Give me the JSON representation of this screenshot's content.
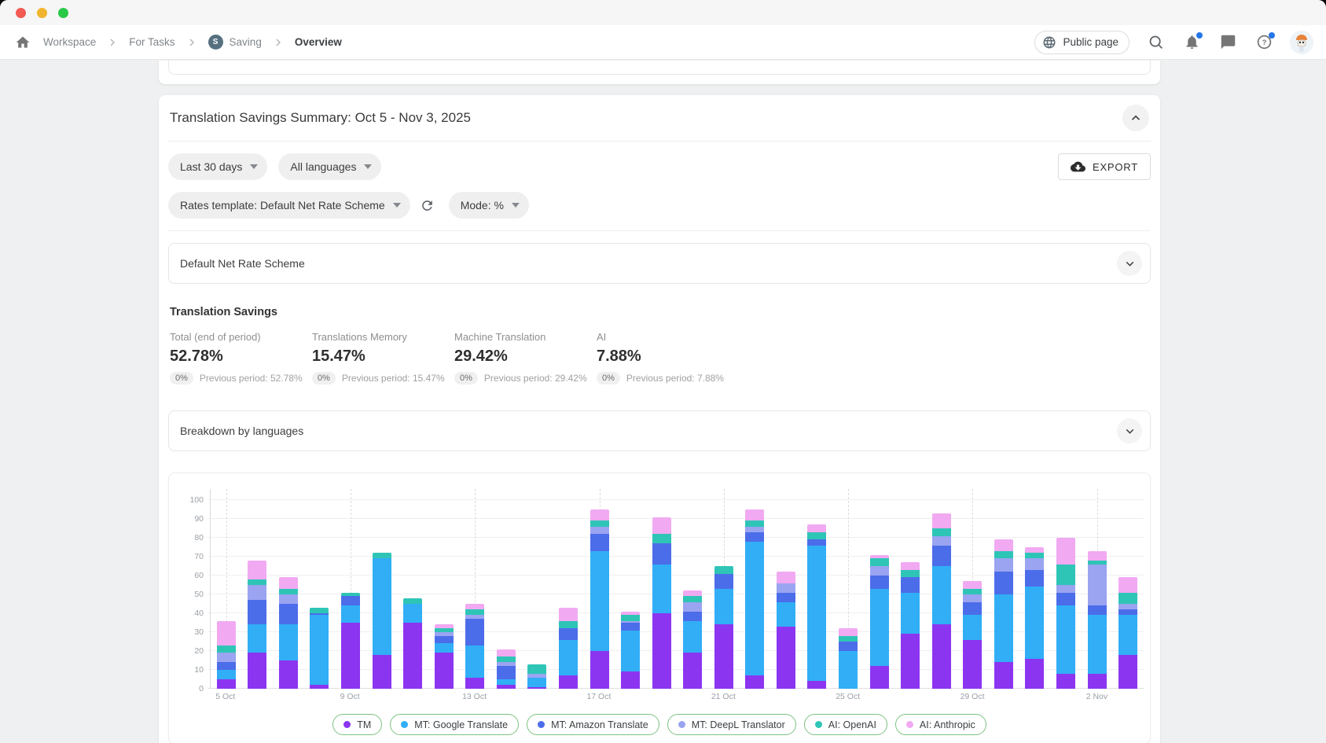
{
  "nav": {
    "breadcrumb": [
      {
        "label": "Workspace"
      },
      {
        "label": "For Tasks"
      },
      {
        "label": "Saving",
        "avatar": "S"
      },
      {
        "label": "Overview"
      }
    ],
    "public_page_label": "Public page"
  },
  "summary": {
    "title": "Translation Savings Summary: Oct 5 - Nov 3, 2025",
    "filters": {
      "date_range": "Last 30 days",
      "languages": "All languages",
      "rates_template": "Rates template: Default Net Rate Scheme",
      "mode": "Mode: %"
    },
    "export_label": "EXPORT",
    "scheme_panel": "Default Net Rate Scheme",
    "savings": {
      "heading": "Translation Savings",
      "metrics": [
        {
          "label": "Total (end of period)",
          "value": "52.78%",
          "delta": "0%",
          "previous": "Previous period: 52.78%"
        },
        {
          "label": "Translations Memory",
          "value": "15.47%",
          "delta": "0%",
          "previous": "Previous period: 15.47%"
        },
        {
          "label": "Machine Translation",
          "value": "29.42%",
          "delta": "0%",
          "previous": "Previous period: 29.42%"
        },
        {
          "label": "AI",
          "value": "7.88%",
          "delta": "0%",
          "previous": "Previous period: 7.88%"
        }
      ]
    },
    "breakdown_panel": "Breakdown by languages"
  },
  "chart_data": {
    "type": "bar",
    "stacked": true,
    "x": [
      "5 Oct",
      "6 Oct",
      "7 Oct",
      "8 Oct",
      "9 Oct",
      "10 Oct",
      "11 Oct",
      "12 Oct",
      "13 Oct",
      "14 Oct",
      "15 Oct",
      "16 Oct",
      "17 Oct",
      "18 Oct",
      "19 Oct",
      "20 Oct",
      "21 Oct",
      "22 Oct",
      "23 Oct",
      "24 Oct",
      "25 Oct",
      "26 Oct",
      "27 Oct",
      "28 Oct",
      "29 Oct",
      "30 Oct",
      "31 Oct",
      "1 Nov",
      "2 Nov",
      "3 Nov"
    ],
    "x_tick_every": 4,
    "x_tick_labels": [
      "5 Oct",
      "9 Oct",
      "13 Oct",
      "17 Oct",
      "21 Oct",
      "25 Oct",
      "29 Oct",
      "2 Nov"
    ],
    "ylim": [
      0,
      100
    ],
    "y_ticks": [
      0,
      10,
      20,
      30,
      40,
      50,
      60,
      70,
      80,
      90,
      100
    ],
    "grid": {
      "horizontal": "solid",
      "vertical": "dashed"
    },
    "legend_position": "bottom",
    "series": [
      {
        "name": "TM",
        "color": "#8c35f0",
        "values": [
          5,
          19,
          15,
          2,
          35,
          18,
          35,
          19,
          6,
          2,
          1,
          7,
          20,
          9,
          40,
          19,
          34,
          7,
          33,
          4,
          0,
          12,
          29,
          34,
          26,
          14,
          16,
          8,
          8,
          18
        ]
      },
      {
        "name": "MT: Google Translate",
        "color": "#31aef6",
        "values": [
          5,
          15,
          19,
          37,
          9,
          51,
          10,
          5,
          17,
          3,
          5,
          19,
          53,
          22,
          26,
          17,
          19,
          71,
          13,
          72,
          20,
          41,
          22,
          31,
          13,
          36,
          38,
          36,
          31,
          21
        ]
      },
      {
        "name": "MT: Amazon Translate",
        "color": "#4c6de9",
        "values": [
          4,
          13,
          11,
          1,
          5,
          0,
          0,
          4,
          14,
          7,
          0,
          6,
          9,
          4,
          11,
          5,
          8,
          5,
          5,
          3,
          5,
          7,
          8,
          11,
          7,
          12,
          9,
          7,
          5,
          3
        ]
      },
      {
        "name": "MT: DeepL Translator",
        "color": "#9aa4f1",
        "values": [
          5,
          8,
          5,
          0,
          0,
          0,
          0,
          2,
          2,
          2,
          2,
          0,
          4,
          1,
          0,
          5,
          0,
          3,
          5,
          0,
          0,
          5,
          0,
          5,
          4,
          7,
          6,
          4,
          22,
          3
        ]
      },
      {
        "name": "AI: OpenAI",
        "color": "#2ec5b6",
        "values": [
          4,
          3,
          3,
          3,
          2,
          3,
          3,
          2,
          3,
          3,
          5,
          4,
          3,
          3,
          5,
          3,
          4,
          3,
          0,
          4,
          3,
          4,
          4,
          4,
          3,
          4,
          3,
          11,
          2,
          6
        ]
      },
      {
        "name": "AI: Anthropic",
        "color": "#f1a9f2",
        "values": [
          13,
          10,
          6,
          0,
          0,
          0,
          0,
          2,
          3,
          4,
          0,
          7,
          6,
          2,
          9,
          3,
          0,
          6,
          6,
          4,
          4,
          2,
          4,
          8,
          4,
          6,
          3,
          14,
          5,
          8
        ]
      }
    ]
  }
}
